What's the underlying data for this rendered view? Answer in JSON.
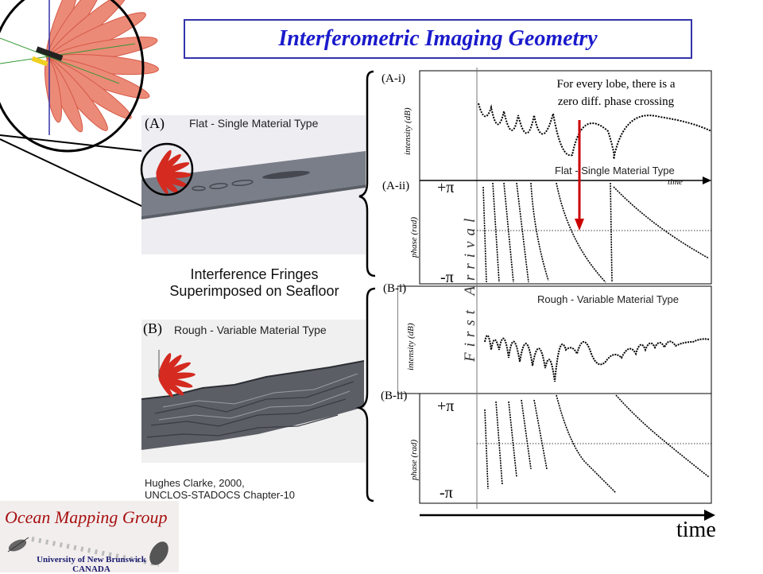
{
  "title": "Interferometric Imaging Geometry",
  "scenes": {
    "a_label": "(A)",
    "a_text": "Flat - Single Material Type",
    "b_label": "(B)",
    "b_text": "Rough - Variable Material Type",
    "caption_line1": "Interference Fringes",
    "caption_line2": "Superimposed on Seafloor"
  },
  "citation": {
    "line1": "Hughes Clarke, 2000,",
    "line2": "UNCLOS-STADOCS Chapter-10"
  },
  "panels": {
    "a_i": "(A-i)",
    "a_ii": "(A-ii)",
    "b_i": "(B-i)",
    "b_ii": "(B-ii)",
    "intensity_label": "intensity (dB)",
    "phase_label": "phase (rad)",
    "plus_pi": "+π",
    "minus_pi": "-π",
    "time_small": "time",
    "time_big": "time",
    "flat_label": "Flat - Single Material Type",
    "rough_label": "Rough - Variable Material Type",
    "first_arrival": "First Arrival",
    "annotation_line1": "For every lobe, there is a",
    "annotation_line2": "zero diff. phase crossing"
  },
  "logo": {
    "group_name": "Ocean Mapping Group",
    "university": "University of New Brunswick",
    "country": "CANADA"
  },
  "colors": {
    "title_blue": "#1a1acc",
    "box_border": "#3333aa",
    "lobe_red": "#e8705a",
    "arrow_red": "#cc0000",
    "brand_red": "#a81010"
  }
}
